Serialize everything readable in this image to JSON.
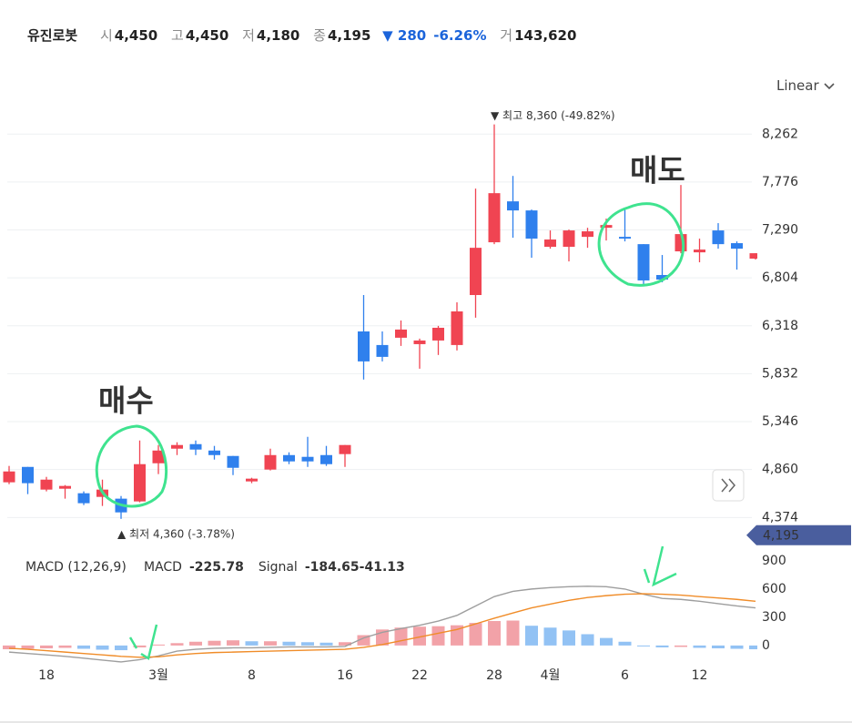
{
  "header": {
    "name": "유진로봇",
    "open_label": "시",
    "open": "4,450",
    "high_label": "고",
    "high": "4,450",
    "low_label": "저",
    "low": "4,180",
    "close_label": "종",
    "close": "4,195",
    "change": "▼ 280",
    "change_pct": "-6.26%",
    "volume_label": "거",
    "volume": "143,620"
  },
  "scale_menu": "Linear",
  "chart_data": [
    {
      "type": "candlestick",
      "categories": [
        null,
        null,
        "18",
        null,
        null,
        null,
        null,
        null,
        "3월",
        null,
        null,
        null,
        null,
        "8",
        null,
        null,
        null,
        null,
        "16",
        null,
        null,
        null,
        "22",
        null,
        null,
        null,
        "28",
        null,
        null,
        "4월",
        null,
        null,
        null,
        "6",
        null,
        null,
        null,
        "12",
        null,
        null,
        null
      ],
      "open": [
        4731,
        4887,
        4657,
        4666,
        4620,
        4583,
        4565,
        4537,
        4924,
        5072,
        5118,
        5053,
        4998,
        4740,
        4860,
        5007,
        4989,
        5007,
        5017,
        6261,
        6123,
        6197,
        6132,
        6169,
        6123,
        6630,
        7165,
        7580,
        7488,
        7119,
        7119,
        7220,
        7312,
        7220,
        7146,
        6833,
        7073,
        7063,
        7285,
        7156,
        6999
      ],
      "high": [
        4897,
        4887,
        4786,
        4703,
        4639,
        4758,
        4592,
        5155,
        5109,
        5137,
        5155,
        5100,
        4998,
        4777,
        5072,
        5035,
        5192,
        5100,
        5109,
        6630,
        6261,
        6372,
        6188,
        6317,
        6556,
        7709,
        8360,
        7838,
        7497,
        7285,
        7294,
        7312,
        7405,
        7515,
        7146,
        7036,
        7746,
        7202,
        7359,
        7174,
        7054
      ],
      "low": [
        4712,
        4611,
        4639,
        4565,
        4500,
        4491,
        4360,
        4528,
        4814,
        5007,
        5007,
        4961,
        4804,
        4722,
        4851,
        4915,
        4887,
        4897,
        4887,
        5773,
        5957,
        6114,
        5883,
        6022,
        6068,
        6400,
        7146,
        7211,
        7008,
        7100,
        6971,
        7109,
        7183,
        7174,
        6741,
        6759,
        7054,
        6962,
        7100,
        6888,
        6990
      ],
      "close": [
        4841,
        4722,
        4758,
        4694,
        4519,
        4657,
        4426,
        4915,
        5053,
        5109,
        5063,
        5007,
        4878,
        4768,
        5007,
        4943,
        4943,
        4915,
        5109,
        5957,
        6003,
        6280,
        6169,
        6298,
        6464,
        7109,
        7663,
        7488,
        7202,
        7193,
        7285,
        7276,
        7340,
        7202,
        6778,
        6787,
        7248,
        7091,
        7146,
        7100,
        7054
      ],
      "up_color": "#f04452",
      "down_color": "#2f80ed",
      "ylim": [
        4340,
        8560
      ],
      "yticks": [
        {
          "value": 4374,
          "label": "4,374"
        },
        {
          "value": 4860,
          "label": "4,860"
        },
        {
          "value": 5346,
          "label": "5,346"
        },
        {
          "value": 5832,
          "label": "5,832"
        },
        {
          "value": 6318,
          "label": "6,318"
        },
        {
          "value": 6804,
          "label": "6,804"
        },
        {
          "value": 7290,
          "label": "7,290"
        },
        {
          "value": 7776,
          "label": "7,776"
        },
        {
          "value": 8262,
          "label": "8,262"
        }
      ],
      "grid": true,
      "high_note": "▼ 최고 8,360 (-49.82%)",
      "low_note": "▲ 최저 4,360 (-3.78%)",
      "last_price": {
        "value": 4195,
        "label": "4,195"
      },
      "annotations": [
        "매수",
        "매도"
      ]
    },
    {
      "type": "macd",
      "title": "MACD (12,26,9)",
      "ylim": [
        -185,
        1015
      ],
      "yticks": [
        900,
        600,
        300,
        0
      ],
      "series": [
        {
          "name": "MACD",
          "value_label": "-225.78",
          "color": "#9e9e9e",
          "values": [
            -70,
            -85,
            -100,
            -115,
            -135,
            -155,
            -175,
            -150,
            -110,
            -60,
            -40,
            -30,
            -25,
            -25,
            -20,
            -15,
            -15,
            -15,
            -10,
            80,
            140,
            180,
            215,
            260,
            320,
            420,
            520,
            575,
            600,
            615,
            625,
            630,
            625,
            600,
            545,
            500,
            490,
            470,
            445,
            420,
            400
          ]
        },
        {
          "name": "Signal",
          "value_label": "-184.65",
          "color": "#f08c28",
          "values": [
            -30,
            -40,
            -55,
            -70,
            -85,
            -100,
            -115,
            -125,
            -120,
            -100,
            -85,
            -75,
            -70,
            -65,
            -60,
            -55,
            -50,
            -45,
            -40,
            -20,
            10,
            50,
            90,
            130,
            170,
            230,
            290,
            345,
            400,
            440,
            480,
            510,
            530,
            545,
            550,
            545,
            535,
            520,
            505,
            490,
            470
          ]
        }
      ],
      "histogram": {
        "value_label": "-41.13",
        "up_color": "#f2a2a8",
        "down_color": "#92c2f4",
        "values": [
          -40,
          -35,
          -30,
          -25,
          -35,
          -45,
          -50,
          -20,
          10,
          25,
          40,
          50,
          55,
          45,
          45,
          40,
          35,
          30,
          35,
          110,
          170,
          190,
          200,
          205,
          215,
          240,
          260,
          265,
          210,
          190,
          160,
          120,
          80,
          40,
          -5,
          -20,
          -15,
          -25,
          -30,
          -35,
          -40
        ]
      }
    }
  ]
}
